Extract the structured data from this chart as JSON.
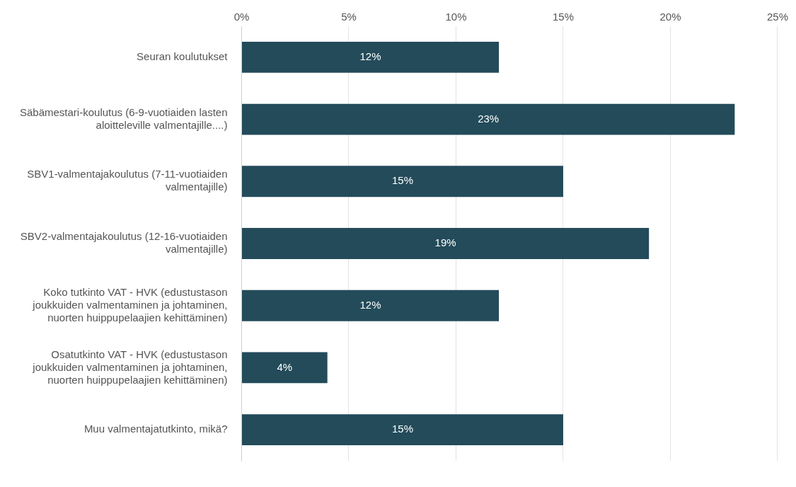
{
  "chart_data": {
    "type": "bar",
    "orientation": "horizontal",
    "categories": [
      "Seuran koulutukset",
      "Säbämestari-koulutus (6-9-vuotiaiden lasten aloitteleville valmentajille....)",
      "SBV1-valmentajakoulutus (7-11-vuotiaiden valmentajille)",
      "SBV2-valmentajakoulutus (12-16-vuotiaiden valmentajille)",
      "Koko tutkinto VAT - HVK (edustustason joukkuiden valmentaminen ja johtaminen, nuorten huippupelaajien kehittäminen)",
      "Osatutkinto VAT - HVK (edustustason joukkuiden valmentaminen ja johtaminen, nuorten huippupelaajien kehittäminen)",
      "Muu valmentajatutkinto, mikä?"
    ],
    "values": [
      12,
      23,
      15,
      19,
      12,
      4,
      15
    ],
    "value_labels": [
      "12%",
      "23%",
      "15%",
      "19%",
      "12%",
      "4%",
      "15%"
    ],
    "color": "#234b5a",
    "xlim": [
      0,
      25
    ],
    "xticks": [
      {
        "value": 0,
        "label": "0%"
      },
      {
        "value": 5,
        "label": "5%"
      },
      {
        "value": 10,
        "label": "10%"
      },
      {
        "value": 15,
        "label": "15%"
      },
      {
        "value": 20,
        "label": "20%"
      },
      {
        "value": 25,
        "label": "25%"
      }
    ],
    "grid": "x",
    "legend": false
  }
}
